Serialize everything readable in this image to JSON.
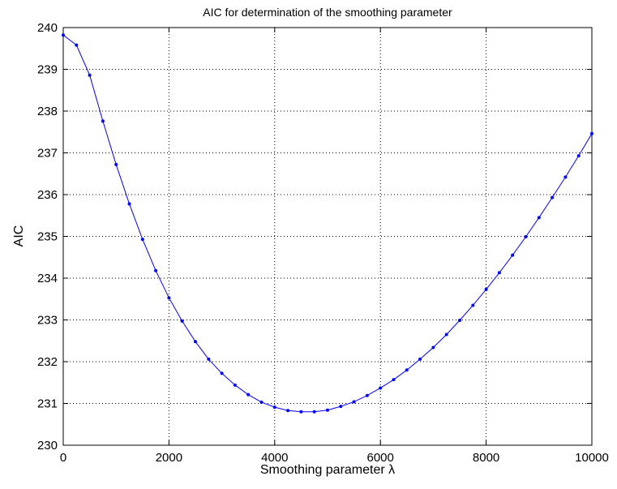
{
  "chart_data": {
    "type": "line",
    "title": "AIC for determination of the smoothing parameter",
    "xlabel": "Smoothing parameter λ",
    "ylabel": "AIC",
    "xlim": [
      0,
      10000
    ],
    "ylim": [
      230,
      240
    ],
    "xticks": [
      0,
      2000,
      4000,
      6000,
      8000,
      10000
    ],
    "yticks": [
      230,
      231,
      232,
      233,
      234,
      235,
      236,
      237,
      238,
      239,
      240
    ],
    "grid": true,
    "line_color": "#0000ff",
    "marker": "dot",
    "series": [
      {
        "x": [
          0,
          250,
          500,
          750,
          1000,
          1250,
          1500,
          1750,
          2000,
          2250,
          2500,
          2750,
          3000,
          3250,
          3500,
          3750,
          4000,
          4250,
          4500,
          4750,
          5000,
          5250,
          5500,
          5750,
          6000,
          6250,
          6500,
          6750,
          7000,
          7250,
          7500,
          7750,
          8000,
          8250,
          8500,
          8750,
          9000,
          9250,
          9500,
          9750,
          10000
        ],
        "y": [
          239.82,
          239.58,
          238.86,
          237.76,
          236.72,
          235.78,
          234.93,
          234.18,
          233.53,
          232.97,
          232.48,
          232.06,
          231.72,
          231.44,
          231.21,
          231.03,
          230.91,
          230.83,
          230.8,
          230.8,
          230.84,
          230.93,
          231.04,
          231.19,
          231.37,
          231.57,
          231.8,
          232.06,
          232.34,
          232.65,
          232.99,
          233.35,
          233.73,
          234.13,
          234.55,
          234.99,
          235.45,
          235.93,
          236.42,
          236.93,
          237.46
        ]
      }
    ]
  }
}
